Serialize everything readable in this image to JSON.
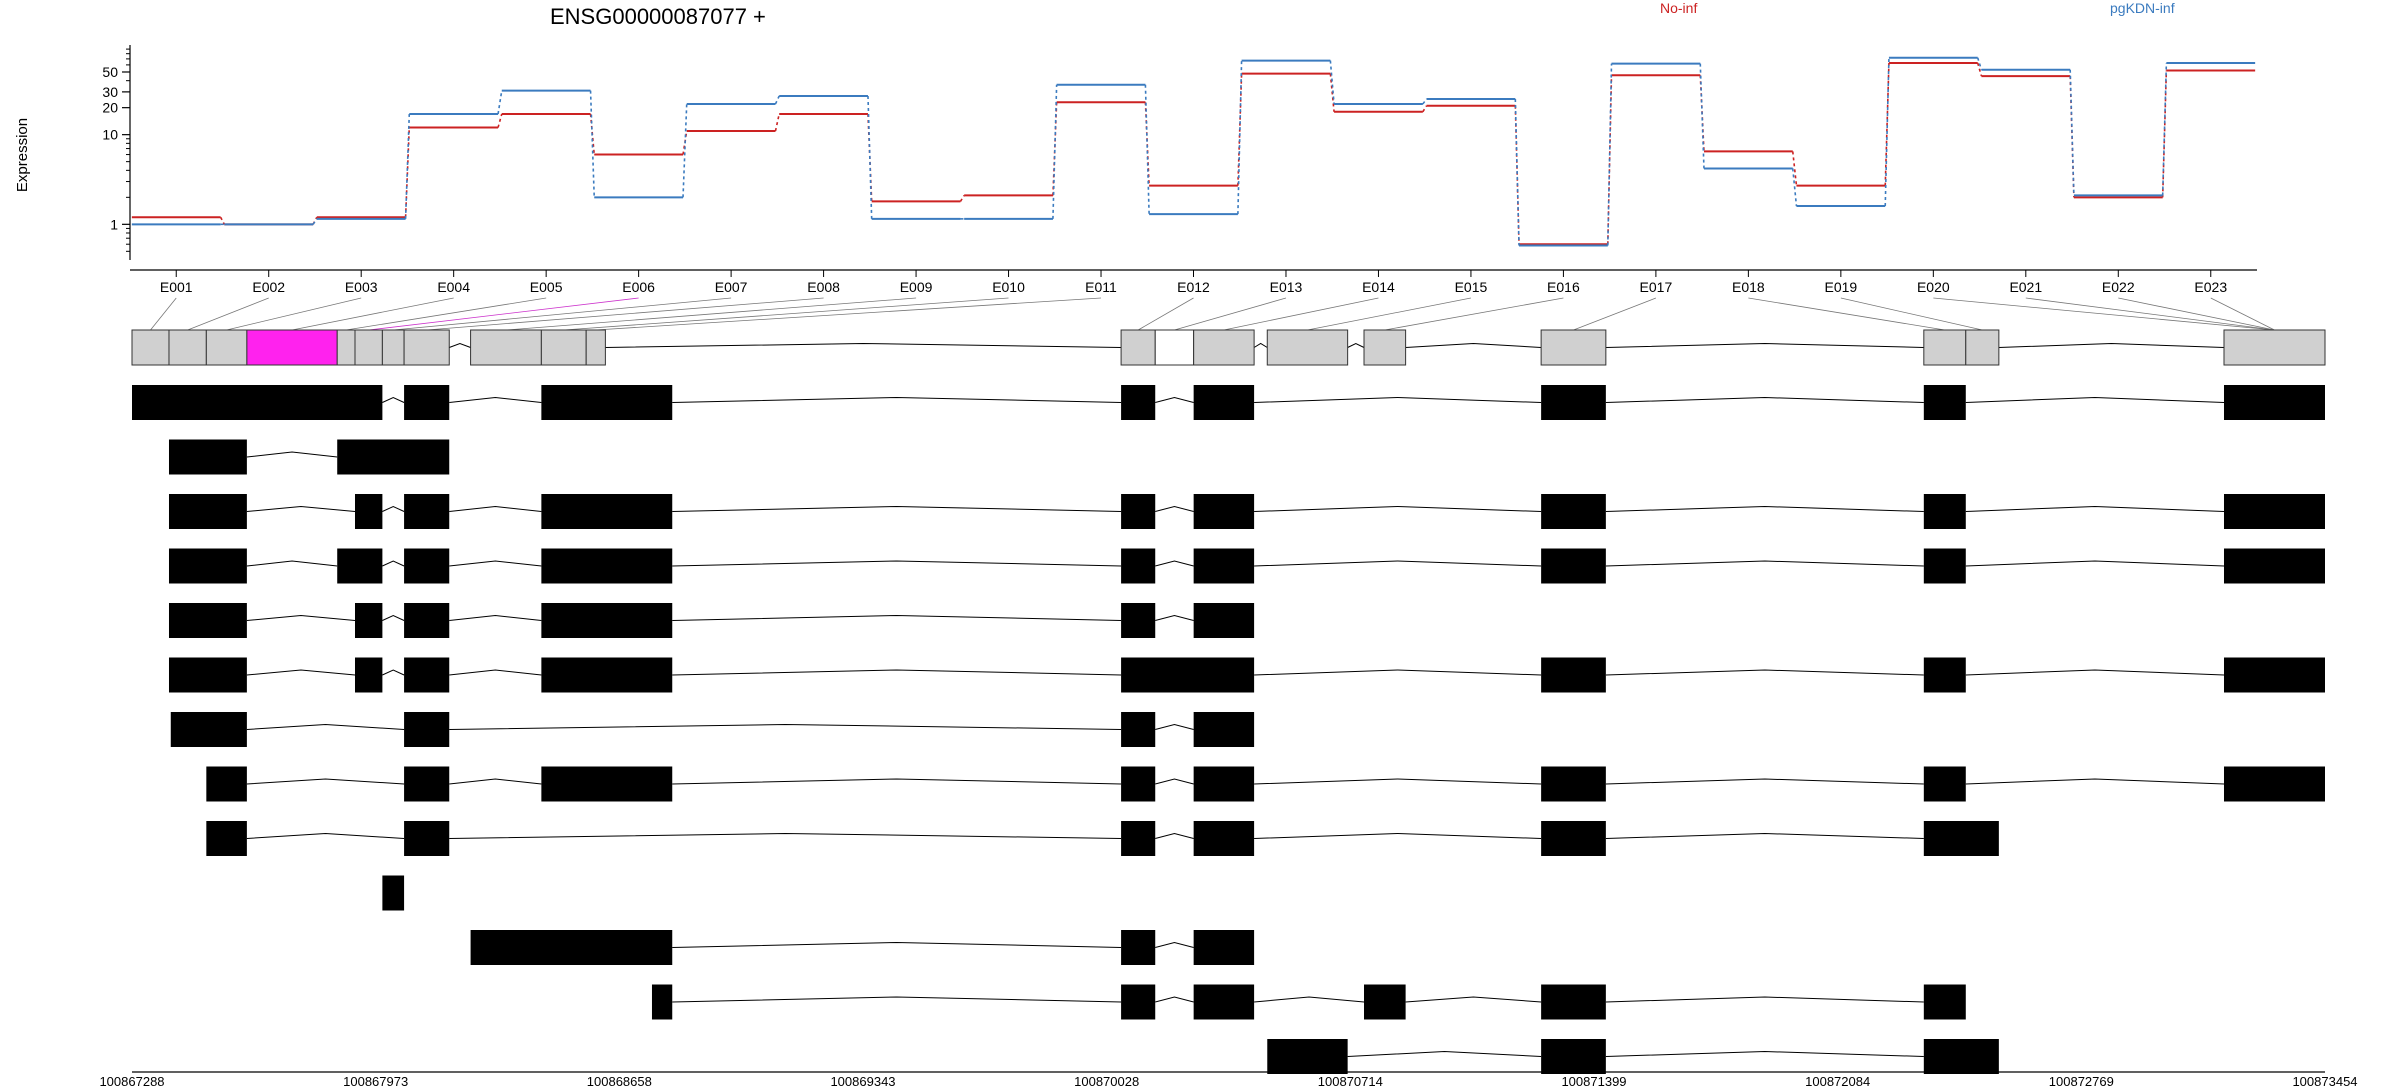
{
  "chart_data": {
    "type": "line",
    "title": "ENSG00000087077 +",
    "xlabel": "",
    "ylabel": "Expression",
    "yscale": "log",
    "yticks": [
      1,
      10,
      20,
      30,
      50
    ],
    "ytick_labels": [
      "1",
      "10",
      "20",
      "30",
      "50"
    ],
    "ylim": [
      0.4,
      100
    ],
    "grid": false,
    "legend_placement": "top",
    "categories": [
      "E001",
      "E002",
      "E003",
      "E004",
      "E005",
      "E006",
      "E007",
      "E008",
      "E009",
      "E010",
      "E011",
      "E012",
      "E013",
      "E014",
      "E015",
      "E016",
      "E017",
      "E018",
      "E019",
      "E020",
      "E021",
      "E022",
      "E023"
    ],
    "series": [
      {
        "name": "No-inf",
        "color": "#cc2222",
        "values": [
          1.2,
          1.0,
          1.2,
          12.0,
          17.0,
          6.0,
          11.0,
          17.0,
          1.8,
          2.1,
          23.0,
          2.7,
          48.0,
          18.0,
          21.0,
          0.6,
          46.0,
          6.5,
          2.7,
          63.0,
          45.0,
          2.0,
          52.0
        ]
      },
      {
        "name": "pgKDN-inf",
        "color": "#3b7bbf",
        "values": [
          1.0,
          1.0,
          1.15,
          17.0,
          31.0,
          2.0,
          22.0,
          27.0,
          1.15,
          1.15,
          36.0,
          1.3,
          67.0,
          22.0,
          25.0,
          0.58,
          62.0,
          4.2,
          1.6,
          72.0,
          53.0,
          2.1,
          63.0
        ]
      }
    ],
    "highlighted_exon": "E006",
    "coordinate_ticks": [
      "100867288",
      "100867973",
      "100868658",
      "100869343",
      "100870028",
      "100870714",
      "100871399",
      "100872084",
      "100872769",
      "100873454"
    ],
    "gene_model_exons": [
      [
        100867288,
        100867392
      ],
      [
        100867392,
        100867497
      ],
      [
        100867497,
        100867611
      ],
      [
        100867611,
        100867865
      ],
      [
        100867865,
        100867915
      ],
      [
        100867915,
        100867992
      ],
      [
        100867992,
        100868053
      ],
      [
        100868053,
        100868180
      ],
      [
        100868240,
        100868439
      ],
      [
        100868439,
        100868565
      ],
      [
        100868565,
        100868619
      ],
      [
        100870069,
        100870165
      ],
      [
        100870165,
        100870273
      ],
      [
        100870273,
        100870443
      ],
      [
        100870480,
        100870706
      ],
      [
        100870752,
        100870869
      ],
      [
        100871250,
        100871432
      ],
      [
        100872326,
        100872444
      ],
      [
        100872444,
        100872537
      ],
      [
        100873170,
        100873454
      ]
    ],
    "transcripts": [
      [
        [
          100867288,
          100867992
        ],
        [
          100868053,
          100868180
        ],
        [
          100868439,
          100868807
        ],
        [
          100870069,
          100870165
        ],
        [
          100870273,
          100870443
        ],
        [
          100871250,
          100871432
        ],
        [
          100872326,
          100872444
        ],
        [
          100873170,
          100873454
        ]
      ],
      [
        [
          100867392,
          100867611
        ],
        [
          100867865,
          100868180
        ]
      ],
      [
        [
          100867392,
          100867611
        ],
        [
          100867915,
          100867992
        ],
        [
          100868053,
          100868180
        ],
        [
          100868439,
          100868807
        ],
        [
          100870069,
          100870165
        ],
        [
          100870273,
          100870443
        ],
        [
          100871250,
          100871432
        ],
        [
          100872326,
          100872444
        ],
        [
          100873170,
          100873454
        ]
      ],
      [
        [
          100867392,
          100867611
        ],
        [
          100867865,
          100867992
        ],
        [
          100868053,
          100868180
        ],
        [
          100868439,
          100868807
        ],
        [
          100870069,
          100870165
        ],
        [
          100870273,
          100870443
        ],
        [
          100871250,
          100871432
        ],
        [
          100872326,
          100872444
        ],
        [
          100873170,
          100873454
        ]
      ],
      [
        [
          100867392,
          100867611
        ],
        [
          100867915,
          100867992
        ],
        [
          100868053,
          100868180
        ],
        [
          100868439,
          100868807
        ],
        [
          100870069,
          100870165
        ],
        [
          100870273,
          100870443
        ]
      ],
      [
        [
          100867392,
          100867611
        ],
        [
          100867915,
          100867992
        ],
        [
          100868053,
          100868180
        ],
        [
          100868439,
          100868807
        ],
        [
          100870069,
          100870443
        ],
        [
          100871250,
          100871432
        ],
        [
          100872326,
          100872444
        ],
        [
          100873170,
          100873454
        ]
      ],
      [
        [
          100867397,
          100867611
        ],
        [
          100868053,
          100868180
        ],
        [
          100870069,
          100870165
        ],
        [
          100870273,
          100870443
        ]
      ],
      [
        [
          100867497,
          100867611
        ],
        [
          100868053,
          100868180
        ],
        [
          100868439,
          100868807
        ],
        [
          100870069,
          100870165
        ],
        [
          100870273,
          100870443
        ],
        [
          100871250,
          100871432
        ],
        [
          100872326,
          100872444
        ],
        [
          100873170,
          100873454
        ]
      ],
      [
        [
          100867497,
          100867611
        ],
        [
          100868053,
          100868180
        ],
        [
          100870069,
          100870165
        ],
        [
          100870273,
          100870443
        ],
        [
          100871250,
          100871432
        ],
        [
          100872326,
          100872537
        ]
      ],
      [
        [
          100867992,
          100868053
        ]
      ],
      [
        [
          100868240,
          100868807
        ],
        [
          100870069,
          100870165
        ],
        [
          100870273,
          100870443
        ]
      ],
      [
        [
          100868750,
          100868807
        ],
        [
          100870069,
          100870165
        ],
        [
          100870273,
          100870443
        ],
        [
          100870752,
          100870869
        ],
        [
          100871250,
          100871432
        ],
        [
          100872326,
          100872444
        ]
      ],
      [
        [
          100870480,
          100870706
        ],
        [
          100871250,
          100871432
        ],
        [
          100872326,
          100872537
        ]
      ]
    ]
  }
}
